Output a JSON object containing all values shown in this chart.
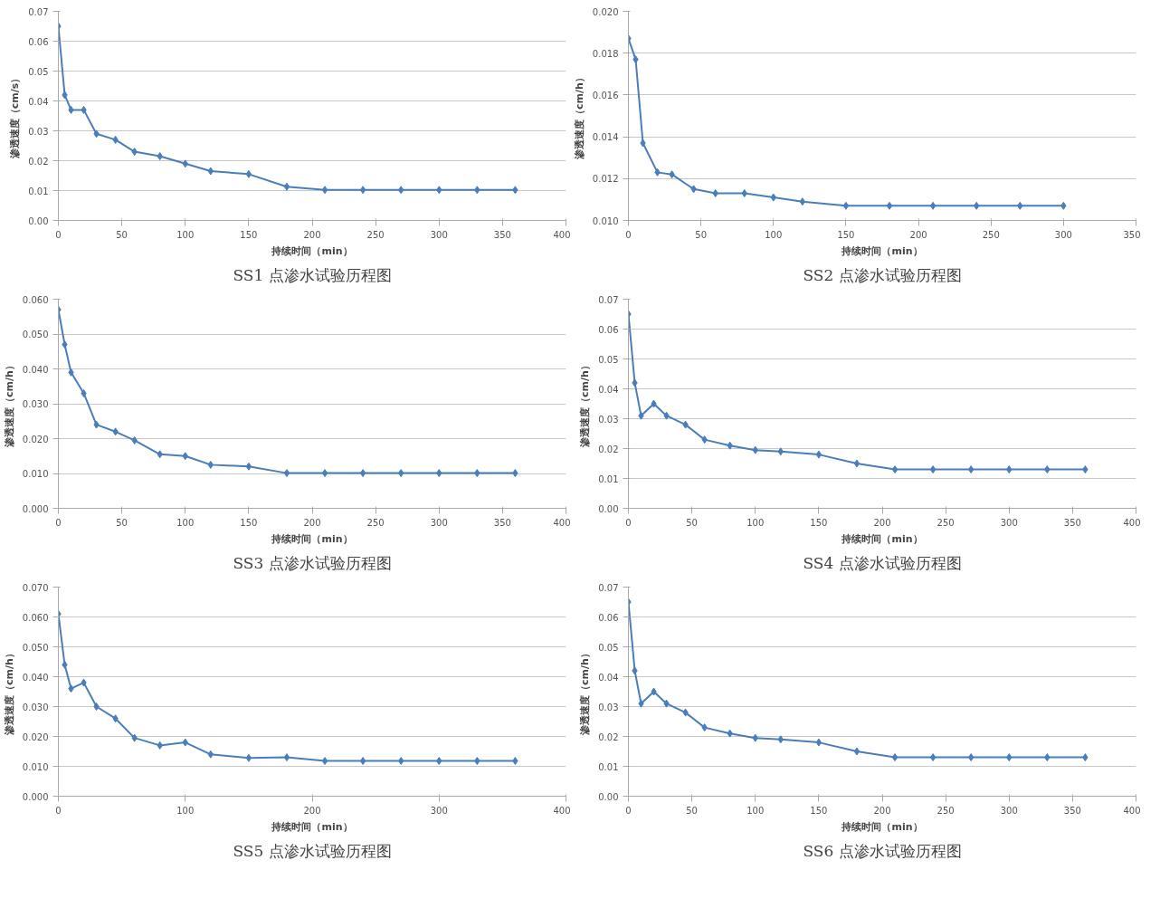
{
  "chart_data": [
    {
      "type": "line",
      "title": "SS1 点渗水试验历程图",
      "xlabel": "持续时间（min）",
      "ylabel": "渗透速度（cm/s）",
      "x": [
        0,
        5,
        10,
        20,
        30,
        45,
        60,
        80,
        100,
        120,
        150,
        180,
        210,
        240,
        270,
        300,
        330,
        360
      ],
      "series": [
        {
          "color": "#4a7ebb",
          "values": [
            0.065,
            0.042,
            0.037,
            0.037,
            0.029,
            0.027,
            0.023,
            0.0215,
            0.019,
            0.0165,
            0.0155,
            0.0113,
            0.0102,
            0.0102,
            0.0102,
            0.0102,
            0.0102,
            0.0102
          ]
        }
      ],
      "xlim": [
        0,
        400
      ],
      "xticks": [
        0,
        50,
        100,
        150,
        200,
        250,
        300,
        350,
        400
      ],
      "ylim": [
        0,
        0.07
      ],
      "yticks": [
        {
          "value": 0,
          "label": "0.00"
        },
        {
          "value": 0.01,
          "label": "0.01"
        },
        {
          "value": 0.02,
          "label": "0.02"
        },
        {
          "value": 0.03,
          "label": "0.03"
        },
        {
          "value": 0.04,
          "label": "0.04"
        },
        {
          "value": 0.05,
          "label": "0.05"
        },
        {
          "value": 0.06,
          "label": "0.06"
        },
        {
          "value": 0.07,
          "label": "0.07"
        }
      ],
      "grid": "y",
      "marker": "diamond",
      "line_style": "solid"
    },
    {
      "type": "line",
      "title": "SS2 点渗水试验历程图",
      "xlabel": "持续时间（min）",
      "ylabel": "渗透速度（cm/h）",
      "x": [
        0,
        5,
        10,
        20,
        30,
        45,
        60,
        80,
        100,
        120,
        150,
        180,
        210,
        240,
        270,
        300
      ],
      "series": [
        {
          "color": "#4a7ebb",
          "values": [
            0.0187,
            0.0177,
            0.0137,
            0.0123,
            0.0122,
            0.0115,
            0.0113,
            0.0113,
            0.0111,
            0.0109,
            0.0107,
            0.0107,
            0.0107,
            0.0107,
            0.0107,
            0.0107
          ]
        }
      ],
      "xlim": [
        0,
        350
      ],
      "xticks": [
        0,
        50,
        100,
        150,
        200,
        250,
        300,
        350
      ],
      "ylim": [
        0.01,
        0.02
      ],
      "yticks": [
        {
          "value": 0.01,
          "label": "0.010"
        },
        {
          "value": 0.012,
          "label": "0.012"
        },
        {
          "value": 0.014,
          "label": "0.014"
        },
        {
          "value": 0.016,
          "label": "0.016"
        },
        {
          "value": 0.018,
          "label": "0.018"
        },
        {
          "value": 0.02,
          "label": "0.020"
        }
      ],
      "grid": "y",
      "marker": "diamond",
      "line_style": "solid"
    },
    {
      "type": "line",
      "title": "SS3 点渗水试验历程图",
      "xlabel": "持续时间（min）",
      "ylabel": "渗透速度（cm/h）",
      "x": [
        0,
        5,
        10,
        20,
        30,
        45,
        60,
        80,
        100,
        120,
        150,
        180,
        210,
        240,
        270,
        300,
        330,
        360
      ],
      "series": [
        {
          "color": "#4a7ebb",
          "values": [
            0.057,
            0.047,
            0.039,
            0.033,
            0.024,
            0.022,
            0.0195,
            0.0155,
            0.015,
            0.0125,
            0.012,
            0.0101,
            0.0101,
            0.0101,
            0.0101,
            0.0101,
            0.0101,
            0.0101
          ]
        }
      ],
      "xlim": [
        0,
        400
      ],
      "xticks": [
        0,
        50,
        100,
        150,
        200,
        250,
        300,
        350,
        400
      ],
      "ylim": [
        0,
        0.06
      ],
      "yticks": [
        {
          "value": 0,
          "label": "0.000"
        },
        {
          "value": 0.01,
          "label": "0.010"
        },
        {
          "value": 0.02,
          "label": "0.020"
        },
        {
          "value": 0.03,
          "label": "0.030"
        },
        {
          "value": 0.04,
          "label": "0.040"
        },
        {
          "value": 0.05,
          "label": "0.050"
        },
        {
          "value": 0.06,
          "label": "0.060"
        }
      ],
      "grid": "y",
      "marker": "diamond",
      "line_style": "solid"
    },
    {
      "type": "line",
      "title": "SS4 点渗水试验历程图",
      "xlabel": "持续时间（min）",
      "ylabel": "渗透速度（cm/h）",
      "x": [
        0,
        5,
        10,
        20,
        30,
        45,
        60,
        80,
        100,
        120,
        150,
        180,
        210,
        240,
        270,
        300,
        330,
        360
      ],
      "series": [
        {
          "color": "#4a7ebb",
          "values": [
            0.065,
            0.042,
            0.031,
            0.035,
            0.031,
            0.028,
            0.023,
            0.021,
            0.0195,
            0.019,
            0.018,
            0.015,
            0.013,
            0.013,
            0.013,
            0.013,
            0.013,
            0.013
          ]
        }
      ],
      "xlim": [
        0,
        400
      ],
      "xticks": [
        0,
        50,
        100,
        150,
        200,
        250,
        300,
        350,
        400
      ],
      "ylim": [
        0,
        0.07
      ],
      "yticks": [
        {
          "value": 0,
          "label": "0.00"
        },
        {
          "value": 0.01,
          "label": "0.01"
        },
        {
          "value": 0.02,
          "label": "0.02"
        },
        {
          "value": 0.03,
          "label": "0.03"
        },
        {
          "value": 0.04,
          "label": "0.04"
        },
        {
          "value": 0.05,
          "label": "0.05"
        },
        {
          "value": 0.06,
          "label": "0.06"
        },
        {
          "value": 0.07,
          "label": "0.07"
        }
      ],
      "grid": "y",
      "marker": "diamond",
      "line_style": "solid"
    },
    {
      "type": "line",
      "title": "SS5 点渗水试验历程图",
      "xlabel": "持续时间（min）",
      "ylabel": "渗透速度（cm/h）",
      "x": [
        0,
        5,
        10,
        20,
        30,
        45,
        60,
        80,
        100,
        120,
        150,
        180,
        210,
        240,
        270,
        300,
        330,
        360
      ],
      "series": [
        {
          "color": "#4a7ebb",
          "values": [
            0.061,
            0.044,
            0.036,
            0.038,
            0.03,
            0.026,
            0.0195,
            0.017,
            0.018,
            0.014,
            0.0128,
            0.013,
            0.0118,
            0.0118,
            0.0118,
            0.0118,
            0.0118,
            0.0118
          ]
        }
      ],
      "xlim": [
        0,
        400
      ],
      "xticks": [
        0,
        100,
        200,
        300,
        400
      ],
      "ylim": [
        0,
        0.07
      ],
      "yticks": [
        {
          "value": 0,
          "label": "0.000"
        },
        {
          "value": 0.01,
          "label": "0.010"
        },
        {
          "value": 0.02,
          "label": "0.020"
        },
        {
          "value": 0.03,
          "label": "0.030"
        },
        {
          "value": 0.04,
          "label": "0.040"
        },
        {
          "value": 0.05,
          "label": "0.050"
        },
        {
          "value": 0.06,
          "label": "0.060"
        },
        {
          "value": 0.07,
          "label": "0.070"
        }
      ],
      "grid": "y",
      "marker": "diamond",
      "line_style": "solid"
    },
    {
      "type": "line",
      "title": "SS6 点渗水试验历程图",
      "xlabel": "持续时间（min）",
      "ylabel": "渗透速度（cm/h）",
      "x": [
        0,
        5,
        10,
        20,
        30,
        45,
        60,
        80,
        100,
        120,
        150,
        180,
        210,
        240,
        270,
        300,
        330,
        360
      ],
      "series": [
        {
          "color": "#4a7ebb",
          "values": [
            0.065,
            0.042,
            0.031,
            0.035,
            0.031,
            0.028,
            0.023,
            0.021,
            0.0195,
            0.019,
            0.018,
            0.015,
            0.013,
            0.013,
            0.013,
            0.013,
            0.013,
            0.013
          ]
        }
      ],
      "xlim": [
        0,
        400
      ],
      "xticks": [
        0,
        50,
        100,
        150,
        200,
        250,
        300,
        350,
        400
      ],
      "ylim": [
        0,
        0.07
      ],
      "yticks": [
        {
          "value": 0,
          "label": "0.00"
        },
        {
          "value": 0.01,
          "label": "0.01"
        },
        {
          "value": 0.02,
          "label": "0.02"
        },
        {
          "value": 0.03,
          "label": "0.03"
        },
        {
          "value": 0.04,
          "label": "0.04"
        },
        {
          "value": 0.05,
          "label": "0.05"
        },
        {
          "value": 0.06,
          "label": "0.06"
        },
        {
          "value": 0.07,
          "label": "0.07"
        }
      ],
      "grid": "y",
      "marker": "diamond",
      "line_style": "solid"
    }
  ]
}
